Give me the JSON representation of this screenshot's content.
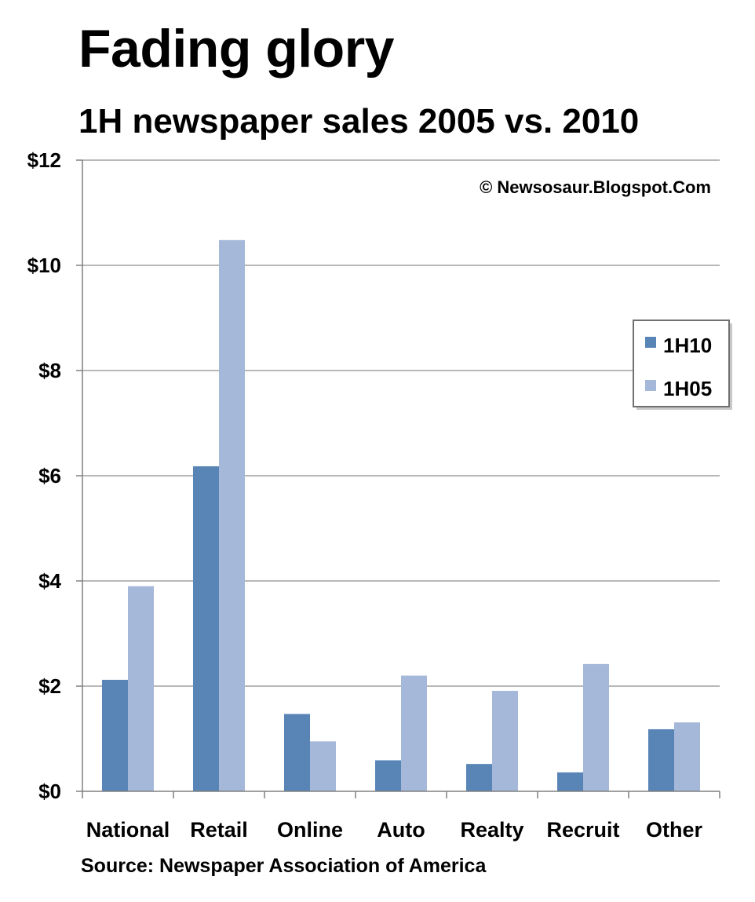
{
  "chart_data": {
    "type": "bar",
    "title": "Fading glory",
    "subtitle": "1H newspaper sales 2005 vs. 2010",
    "copyright": "© Newsosaur.Blogspot.Com",
    "source": "Source: Newspaper Association of America",
    "categories": [
      "National",
      "Retail",
      "Online",
      "Auto",
      "Realty",
      "Recruit",
      "Other"
    ],
    "series": [
      {
        "name": "1H10",
        "color": "#5885b6",
        "values": [
          2.12,
          6.18,
          1.47,
          0.59,
          0.52,
          0.36,
          1.18
        ]
      },
      {
        "name": "1H05",
        "color": "#a5b8da",
        "values": [
          3.9,
          10.48,
          0.95,
          2.2,
          1.91,
          2.42,
          1.31
        ]
      }
    ],
    "yticks": [
      "$0",
      "$2",
      "$4",
      "$6",
      "$8",
      "$10",
      "$12"
    ],
    "ylim": [
      0,
      12
    ],
    "grid": true,
    "legend_position": "right"
  }
}
